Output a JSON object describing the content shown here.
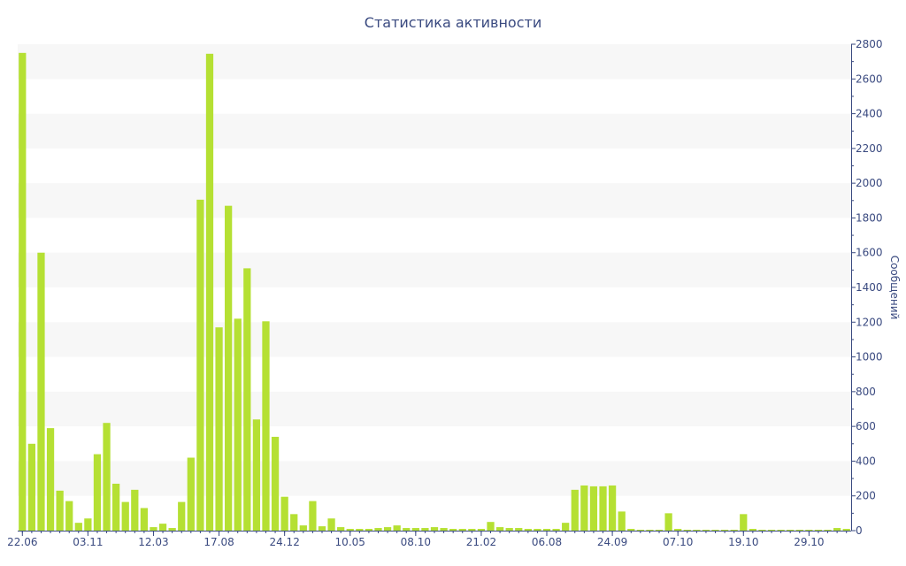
{
  "chart_data": {
    "type": "bar",
    "title": "Статистика активности",
    "xlabel": "",
    "ylabel": "Сообщений",
    "y_axis_side": "right",
    "ylim": [
      0,
      2800
    ],
    "y_ticks": [
      0,
      200,
      400,
      600,
      800,
      1000,
      1200,
      1400,
      1600,
      1800,
      2000,
      2200,
      2400,
      2600,
      2800
    ],
    "grid": "alternating horizontal bands",
    "bar_color": "#b5e033",
    "band_color": "#f7f7f7",
    "text_color": "#3a4a80",
    "x_tick_labels": [
      {
        "bar": 0,
        "label": "22.06"
      },
      {
        "bar": 7,
        "label": "03.11"
      },
      {
        "bar": 14,
        "label": "12.03"
      },
      {
        "bar": 21,
        "label": "17.08"
      },
      {
        "bar": 28,
        "label": "24.12"
      },
      {
        "bar": 35,
        "label": "10.05"
      },
      {
        "bar": 42,
        "label": "08.10"
      },
      {
        "bar": 49,
        "label": "21.02"
      },
      {
        "bar": 56,
        "label": "06.08"
      },
      {
        "bar": 63,
        "label": "24.09"
      },
      {
        "bar": 70,
        "label": "07.10"
      },
      {
        "bar": 77,
        "label": "19.10"
      },
      {
        "bar": 84,
        "label": "29.10"
      }
    ],
    "values": [
      2750,
      500,
      1600,
      590,
      230,
      170,
      45,
      70,
      440,
      620,
      270,
      165,
      235,
      130,
      20,
      40,
      15,
      165,
      420,
      1905,
      2745,
      1170,
      1870,
      1220,
      1510,
      640,
      1205,
      540,
      195,
      95,
      30,
      170,
      25,
      70,
      20,
      10,
      10,
      10,
      15,
      20,
      30,
      15,
      15,
      15,
      20,
      15,
      10,
      10,
      10,
      10,
      50,
      20,
      15,
      15,
      10,
      10,
      10,
      10,
      45,
      235,
      260,
      255,
      255,
      260,
      110,
      10,
      5,
      5,
      5,
      100,
      10,
      5,
      5,
      5,
      5,
      5,
      5,
      95,
      10,
      5,
      5,
      5,
      5,
      5,
      5,
      5,
      5,
      15,
      10
    ]
  }
}
